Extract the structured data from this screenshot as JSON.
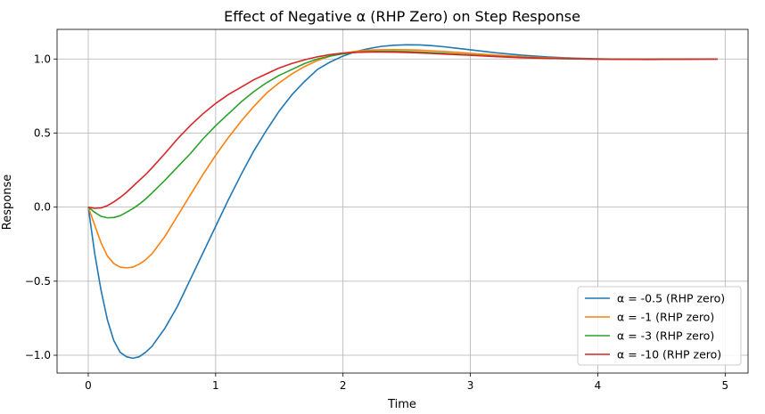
{
  "chart_data": {
    "type": "line",
    "title": "Effect of Negative α (RHP Zero) on Step Response",
    "xlabel": "Time",
    "ylabel": "Response",
    "xlim": [
      -0.245,
      5.18
    ],
    "ylim": [
      -1.12,
      1.2
    ],
    "xticks": [
      0,
      1,
      2,
      3,
      4,
      5
    ],
    "yticks": [
      -1.0,
      -0.5,
      0.0,
      0.5,
      1.0
    ],
    "xtick_labels": [
      "0",
      "1",
      "2",
      "3",
      "4",
      "5"
    ],
    "ytick_labels": [
      "−1.0",
      "−0.5",
      "0.0",
      "0.5",
      "1.0"
    ],
    "grid": true,
    "legend_position": "lower-right",
    "x": [
      0,
      0.05,
      0.1,
      0.15,
      0.2,
      0.25,
      0.3,
      0.35,
      0.4,
      0.45,
      0.5,
      0.6,
      0.7,
      0.8,
      0.9,
      1.0,
      1.1,
      1.2,
      1.3,
      1.4,
      1.5,
      1.6,
      1.7,
      1.8,
      1.9,
      2.0,
      2.1,
      2.2,
      2.3,
      2.4,
      2.5,
      2.6,
      2.7,
      2.8,
      2.9,
      3.0,
      3.2,
      3.4,
      3.6,
      3.8,
      4.0,
      4.2,
      4.4,
      4.6,
      4.8,
      4.94
    ],
    "series": [
      {
        "name": "α = -0.5 (RHP zero)",
        "color": "#1f77b4",
        "values": [
          0,
          -0.31,
          -0.56,
          -0.76,
          -0.9,
          -0.98,
          -1.01,
          -1.02,
          -1.01,
          -0.98,
          -0.94,
          -0.82,
          -0.67,
          -0.49,
          -0.31,
          -0.13,
          0.05,
          0.22,
          0.38,
          0.52,
          0.65,
          0.76,
          0.85,
          0.93,
          0.98,
          1.02,
          1.05,
          1.07,
          1.085,
          1.093,
          1.096,
          1.095,
          1.09,
          1.082,
          1.072,
          1.062,
          1.042,
          1.026,
          1.014,
          1.006,
          1.001,
          0.998,
          0.997,
          0.998,
          0.999,
          1.0
        ]
      },
      {
        "name": "α = -1 (RHP zero)",
        "color": "#ff7f0e",
        "values": [
          0,
          -0.12,
          -0.24,
          -0.33,
          -0.38,
          -0.405,
          -0.41,
          -0.405,
          -0.385,
          -0.355,
          -0.315,
          -0.2,
          -0.06,
          0.08,
          0.22,
          0.35,
          0.47,
          0.58,
          0.68,
          0.77,
          0.84,
          0.9,
          0.95,
          0.99,
          1.02,
          1.04,
          1.052,
          1.06,
          1.062,
          1.063,
          1.062,
          1.06,
          1.055,
          1.05,
          1.045,
          1.038,
          1.026,
          1.016,
          1.008,
          1.003,
          1.0,
          0.998,
          0.998,
          0.999,
          1.0,
          1.0
        ]
      },
      {
        "name": "α = -3 (RHP zero)",
        "color": "#2ca02c",
        "values": [
          0,
          -0.035,
          -0.062,
          -0.072,
          -0.07,
          -0.058,
          -0.035,
          -0.01,
          0.02,
          0.055,
          0.095,
          0.18,
          0.27,
          0.36,
          0.46,
          0.55,
          0.63,
          0.71,
          0.78,
          0.84,
          0.89,
          0.93,
          0.97,
          1.0,
          1.02,
          1.035,
          1.045,
          1.05,
          1.052,
          1.052,
          1.05,
          1.047,
          1.043,
          1.038,
          1.033,
          1.028,
          1.018,
          1.01,
          1.005,
          1.001,
          0.999,
          0.998,
          0.998,
          0.999,
          1.0,
          1.0
        ]
      },
      {
        "name": "α = -10 (RHP zero)",
        "color": "#d62728",
        "values": [
          0,
          -0.008,
          -0.005,
          0.01,
          0.035,
          0.065,
          0.1,
          0.14,
          0.18,
          0.22,
          0.265,
          0.36,
          0.46,
          0.55,
          0.63,
          0.7,
          0.76,
          0.81,
          0.86,
          0.9,
          0.94,
          0.97,
          0.995,
          1.015,
          1.03,
          1.04,
          1.045,
          1.047,
          1.047,
          1.046,
          1.044,
          1.041,
          1.037,
          1.033,
          1.029,
          1.025,
          1.016,
          1.009,
          1.004,
          1.001,
          0.999,
          0.998,
          0.998,
          0.999,
          1.0,
          1.0
        ]
      }
    ]
  }
}
